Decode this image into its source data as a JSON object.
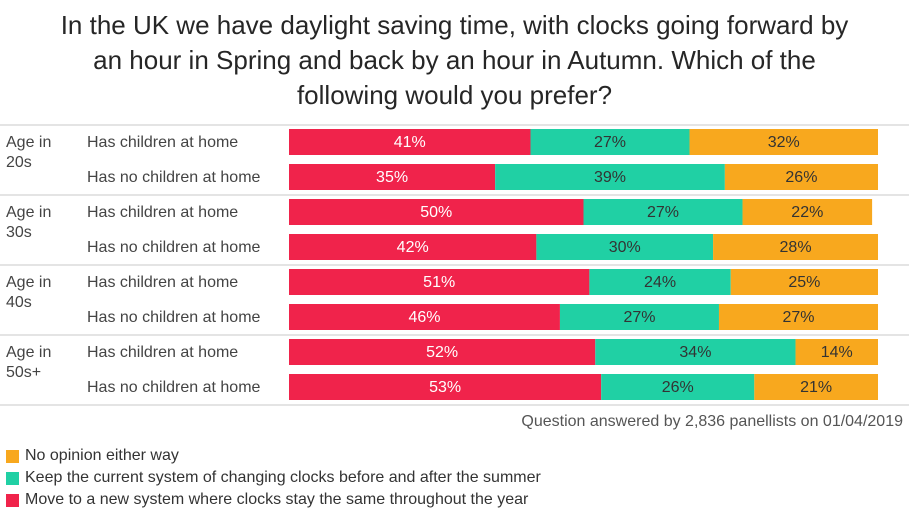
{
  "title_lines": [
    "In the UK we have daylight saving time, with clocks going forward by",
    "an hour in Spring and back by an hour in Autumn.  Which of the",
    "following would you prefer?"
  ],
  "footnote": "Question answered by 2,836 panellists on 01/04/2019",
  "colors": {
    "move": "#f0234b",
    "keep": "#20d0a4",
    "none": "#f8a81e"
  },
  "legend": [
    {
      "key": "none",
      "label": "No opinion either way"
    },
    {
      "key": "keep",
      "label": "Keep the current system of changing clocks before and after the summer"
    },
    {
      "key": "move",
      "label": "Move to a new system where clocks stay the same throughout the year"
    }
  ],
  "chart_data": {
    "type": "bar",
    "orientation": "horizontal",
    "stacked": true,
    "unit": "%",
    "groups": [
      {
        "label_lines": [
          "Age in",
          "20s"
        ],
        "rows": [
          "Has children at home",
          "Has no children at home"
        ]
      },
      {
        "label_lines": [
          "Age in",
          "30s"
        ],
        "rows": [
          "Has children at home",
          "Has no children at home"
        ]
      },
      {
        "label_lines": [
          "Age in",
          "40s"
        ],
        "rows": [
          "Has children at home",
          "Has no children at home"
        ]
      },
      {
        "label_lines": [
          "Age in",
          "50s+"
        ],
        "rows": [
          "Has children at home",
          "Has no children at home"
        ]
      }
    ],
    "series": [
      {
        "key": "move",
        "name": "Move to a new system where clocks stay the same throughout the year",
        "values": [
          41,
          35,
          50,
          42,
          51,
          46,
          52,
          53
        ]
      },
      {
        "key": "keep",
        "name": "Keep the current system of changing clocks before and after the summer",
        "values": [
          27,
          39,
          27,
          30,
          24,
          27,
          34,
          26
        ]
      },
      {
        "key": "none",
        "name": "No opinion either way",
        "values": [
          32,
          26,
          22,
          28,
          25,
          27,
          14,
          21
        ]
      }
    ]
  }
}
